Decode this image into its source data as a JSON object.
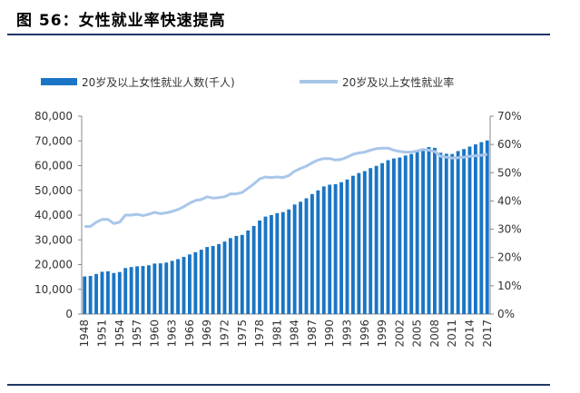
{
  "title": "图 56：女性就业率快速提高",
  "chart_data": {
    "type": "bar+line",
    "title": "",
    "categories": [
      1948,
      1949,
      1950,
      1951,
      1952,
      1953,
      1954,
      1955,
      1956,
      1957,
      1958,
      1959,
      1960,
      1961,
      1962,
      1963,
      1964,
      1965,
      1966,
      1967,
      1968,
      1969,
      1970,
      1971,
      1972,
      1973,
      1974,
      1975,
      1976,
      1977,
      1978,
      1979,
      1980,
      1981,
      1982,
      1983,
      1984,
      1985,
      1986,
      1987,
      1988,
      1989,
      1990,
      1991,
      1992,
      1993,
      1994,
      1995,
      1996,
      1997,
      1998,
      1999,
      2000,
      2001,
      2002,
      2003,
      2004,
      2005,
      2006,
      2007,
      2008,
      2009,
      2010,
      2011,
      2012,
      2013,
      2014,
      2015,
      2016,
      2017
    ],
    "x_tick_labels": [
      "1948",
      "1951",
      "1954",
      "1957",
      "1960",
      "1963",
      "1966",
      "1969",
      "1972",
      "1975",
      "1978",
      "1981",
      "1984",
      "1987",
      "1990",
      "1993",
      "1996",
      "1999",
      "2002",
      "2005",
      "2008",
      "2011",
      "2014",
      "2017"
    ],
    "series": [
      {
        "name": "20岁及以上女性就业人数(千人)",
        "type": "bar",
        "axis": "left",
        "color": "#1a75c4",
        "values": [
          15200,
          15400,
          16200,
          17100,
          17300,
          16600,
          17000,
          18600,
          19000,
          19300,
          19400,
          19700,
          20400,
          20500,
          20800,
          21500,
          22200,
          23100,
          24100,
          25000,
          26000,
          27100,
          27500,
          28300,
          29300,
          30700,
          31600,
          32000,
          33800,
          35600,
          37800,
          39400,
          40000,
          40800,
          41200,
          42300,
          44300,
          45400,
          46800,
          48500,
          50000,
          51600,
          52300,
          52500,
          53300,
          54400,
          55900,
          57000,
          57800,
          59000,
          59900,
          61000,
          62200,
          62900,
          63300,
          64100,
          64700,
          65800,
          67000,
          67500,
          67200,
          65200,
          64800,
          64700,
          65900,
          66700,
          67700,
          68600,
          69500,
          70200
        ]
      },
      {
        "name": "20岁及以上女性就业率",
        "type": "line",
        "axis": "right",
        "color": "#a9c6ea",
        "values": [
          31,
          31,
          32.5,
          33.5,
          33.5,
          32,
          32.5,
          35,
          35,
          35.3,
          34.8,
          35.3,
          36,
          35.5,
          35.8,
          36.3,
          37,
          38,
          39.2,
          40.2,
          40.5,
          41.5,
          41,
          41.2,
          41.5,
          42.5,
          42.5,
          43,
          44.5,
          46,
          47.8,
          48.5,
          48.3,
          48.5,
          48.3,
          49,
          50.5,
          51.5,
          52.3,
          53.5,
          54.5,
          55,
          55,
          54.5,
          54.7,
          55.5,
          56.5,
          57,
          57.3,
          58,
          58.5,
          58.7,
          58.7,
          58,
          57.5,
          57.3,
          57.3,
          57.7,
          58.2,
          58,
          57.5,
          55.8,
          55.5,
          55.2,
          55.3,
          55.5,
          55.8,
          56,
          56.2,
          56.5
        ]
      }
    ],
    "y_left": {
      "min": 0,
      "max": 80000,
      "ticks": [
        "0",
        "10,000",
        "20,000",
        "30,000",
        "40,000",
        "50,000",
        "60,000",
        "70,000",
        "80,000"
      ]
    },
    "y_right": {
      "min": 0,
      "max": 70,
      "ticks": [
        "0%",
        "10%",
        "20%",
        "30%",
        "40%",
        "50%",
        "60%",
        "70%"
      ]
    },
    "legend_position": "top",
    "grid": false
  }
}
